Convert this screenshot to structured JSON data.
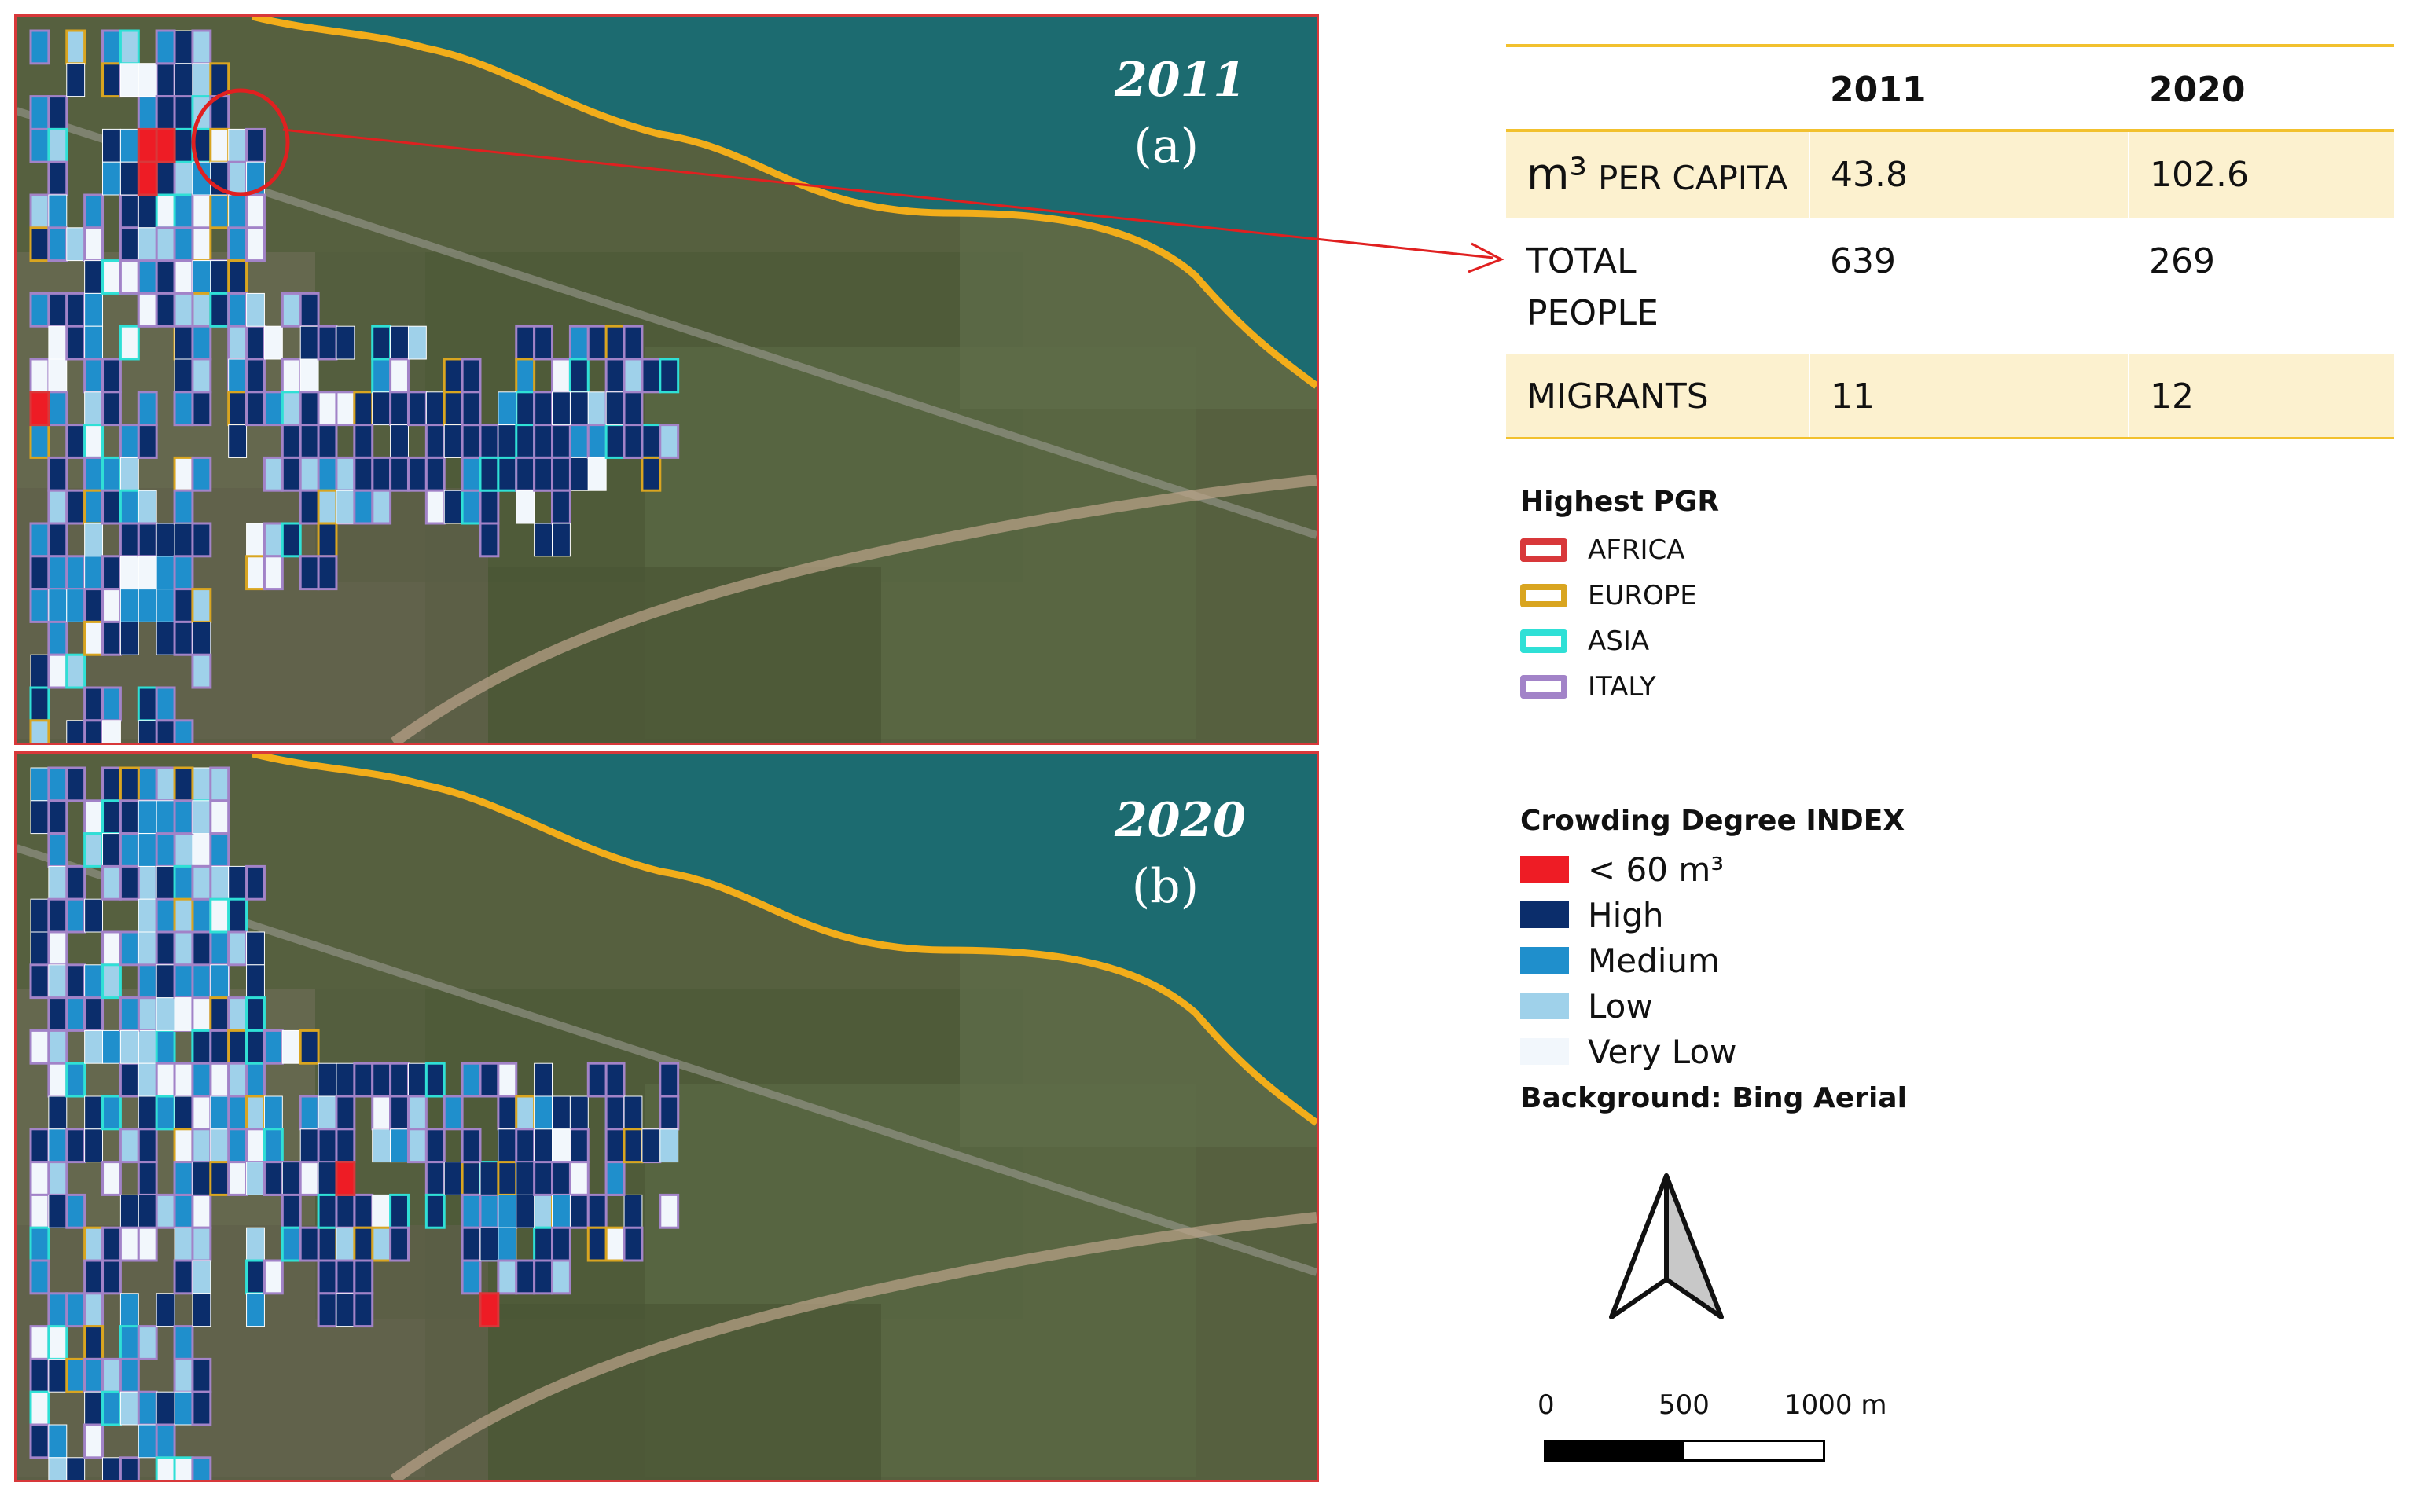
{
  "panels": [
    {
      "year": "2011",
      "letter": "(a)"
    },
    {
      "year": "2020",
      "letter": "(b)"
    }
  ],
  "table": {
    "headers": [
      "",
      "2011",
      "2020"
    ],
    "rows": [
      {
        "label_main": "m³",
        "label_rest": "PER CAPITA",
        "v2011": "43.8",
        "v2020": "102.6"
      },
      {
        "label_main": "TOTAL PEOPLE",
        "label_rest": "",
        "v2011": "639",
        "v2020": "269"
      },
      {
        "label_main": "MIGRANTS",
        "label_rest": "",
        "v2011": "11",
        "v2020": "12"
      }
    ]
  },
  "legend_pgr": {
    "title": "Highest PGR",
    "items": [
      {
        "label": "AFRICA",
        "color": "#d8383a"
      },
      {
        "label": "EUROPE",
        "color": "#d9a520"
      },
      {
        "label": "ASIA",
        "color": "#2fe0d6"
      },
      {
        "label": "ITALY",
        "color": "#a283c8"
      }
    ]
  },
  "legend_crowding": {
    "title": "Crowding Degree INDEX",
    "items": [
      {
        "label": "< 60 m³",
        "color": "#ee1c25"
      },
      {
        "label": "High",
        "color": "#0b2d6b"
      },
      {
        "label": "Medium",
        "color": "#1f8fcc"
      },
      {
        "label": "Low",
        "color": "#9fd1ea"
      },
      {
        "label": "Very Low",
        "color": "#f2f7fc"
      }
    ]
  },
  "background_note": "Background: Bing Aerial",
  "scale_bar": {
    "labels": [
      "0",
      "500",
      "1000 m"
    ]
  },
  "icons": [
    "north-arrow-icon"
  ]
}
